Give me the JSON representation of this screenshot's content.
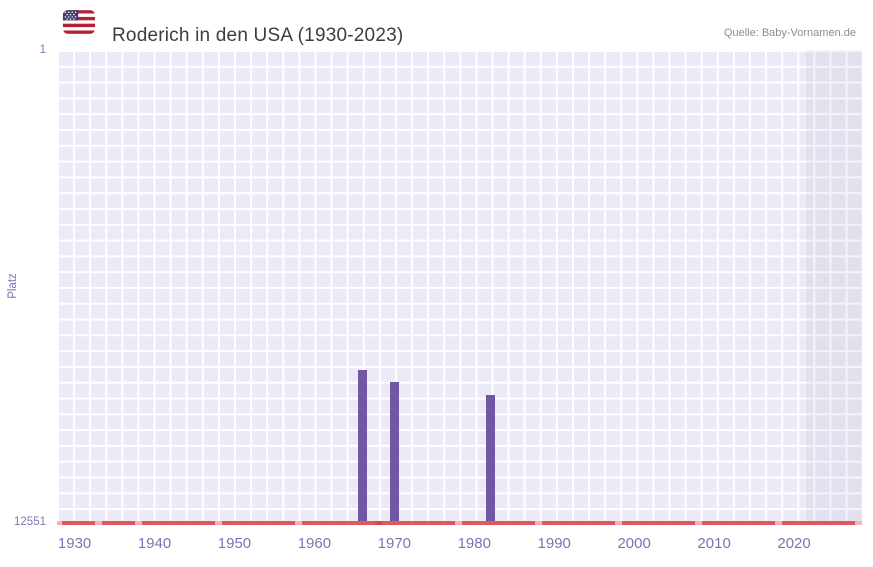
{
  "header": {
    "title": "Roderich in den USA (1930-2023)",
    "source": "Quelle: Baby-Vornamen.de"
  },
  "chart_data": {
    "type": "bar",
    "title": "Roderich in den USA (1930-2023)",
    "xlabel": "",
    "ylabel": "Platz",
    "y_axis": {
      "min": 1,
      "max": 12551,
      "inverted": true,
      "top_label": "1",
      "bottom_label": "12551"
    },
    "xlim": [
      1927.8,
      2028.5
    ],
    "x_ticks": [
      1930,
      1940,
      1950,
      1960,
      1970,
      1980,
      1990,
      2000,
      2010,
      2020
    ],
    "points": [
      {
        "year": 1966,
        "rank": 8500
      },
      {
        "year": 1970,
        "rank": 8800
      },
      {
        "year": 1982,
        "rank": 9150
      }
    ],
    "shaded_region": {
      "from_year": 2021.5,
      "to_year": 2028.5
    },
    "baseline_marker_years": [
      1928,
      1933,
      1938,
      1948,
      1958,
      1968,
      1978,
      1988,
      1998,
      2008,
      2018,
      2028
    ],
    "baseline_marker_dark_years": [
      1968
    ],
    "grid": true,
    "legend_position": "none"
  },
  "colors": {
    "bar": "#7156a8",
    "plot_bg": "#eceaf6",
    "grid_line": "#ffffff",
    "baseline": "#e0575e",
    "marker": "#f3b5bb",
    "marker_dark": "#cf4b52",
    "axis_text": "#8171b2",
    "title_text": "#3c3c45",
    "source_text": "#8d8d8d",
    "shade_tint": "rgba(109,90,160,0.07)"
  },
  "icons": {
    "flag": "us-flag-icon"
  }
}
